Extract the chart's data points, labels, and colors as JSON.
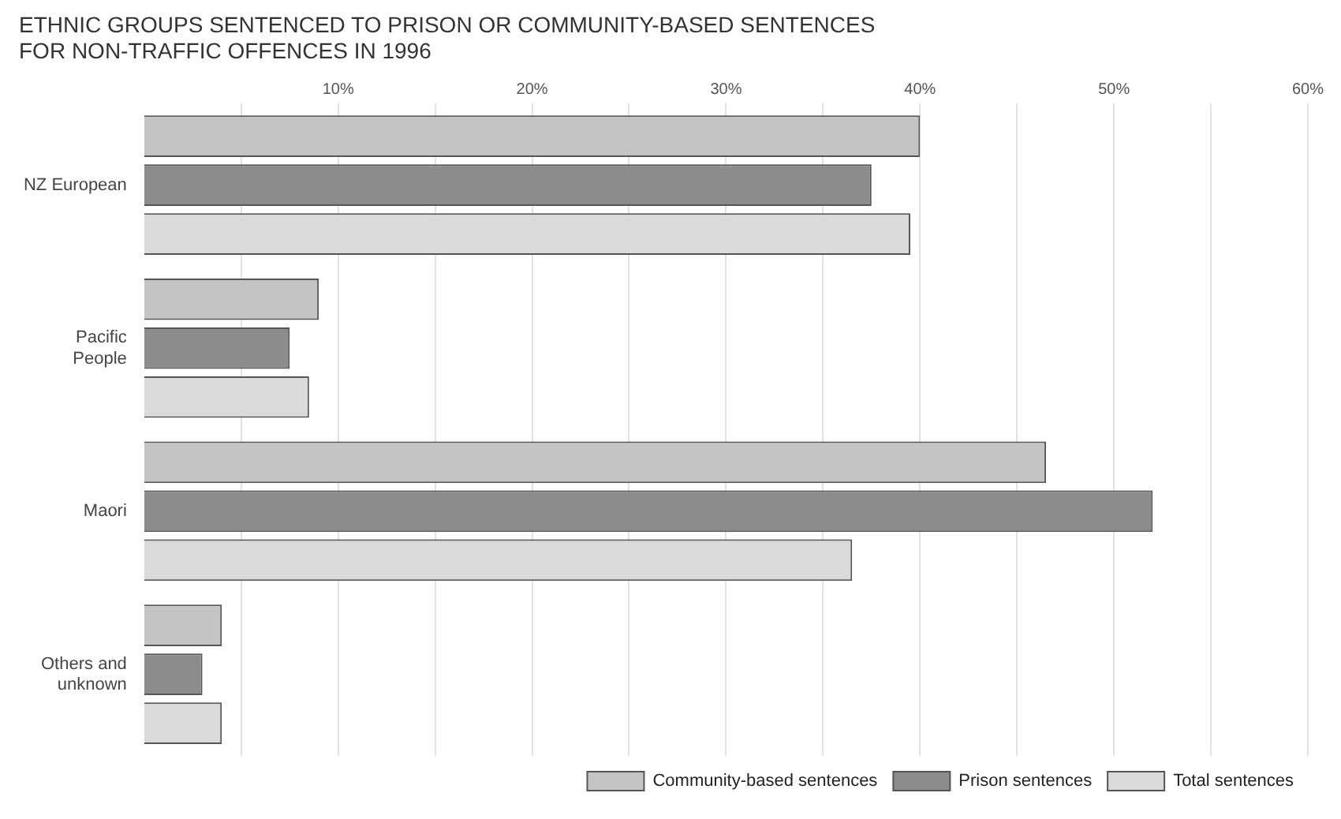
{
  "chart_data": {
    "type": "bar",
    "orientation": "horizontal",
    "title": "ETHNIC GROUPS SENTENCED TO PRISON OR COMMUNITY-BASED SENTENCES FOR NON-TRAFFIC OFFENCES IN 1996",
    "categories": [
      "NZ European",
      "Pacific People",
      "Maori",
      "Others and unknown"
    ],
    "series": [
      {
        "name": "Community-based sentences",
        "color": "#c4c4c4",
        "values": [
          40,
          9,
          46.5,
          4
        ]
      },
      {
        "name": "Prison sentences",
        "color": "#8c8c8c",
        "values": [
          37.5,
          7.5,
          52,
          3
        ]
      },
      {
        "name": "Total sentences",
        "color": "#dadada",
        "values": [
          39.5,
          8.5,
          36.5,
          4
        ]
      }
    ],
    "xlim": [
      0,
      60
    ],
    "xticks": [
      {
        "value": 5,
        "label": null
      },
      {
        "value": 10,
        "label": "10%"
      },
      {
        "value": 15,
        "label": null
      },
      {
        "value": 20,
        "label": "20%"
      },
      {
        "value": 25,
        "label": null
      },
      {
        "value": 30,
        "label": "30%"
      },
      {
        "value": 35,
        "label": null
      },
      {
        "value": 40,
        "label": "40%"
      },
      {
        "value": 45,
        "label": null
      },
      {
        "value": 50,
        "label": "50%"
      },
      {
        "value": 55,
        "label": null
      },
      {
        "value": 60,
        "label": "60%"
      }
    ],
    "grid": "x",
    "legend": "bottom right"
  }
}
